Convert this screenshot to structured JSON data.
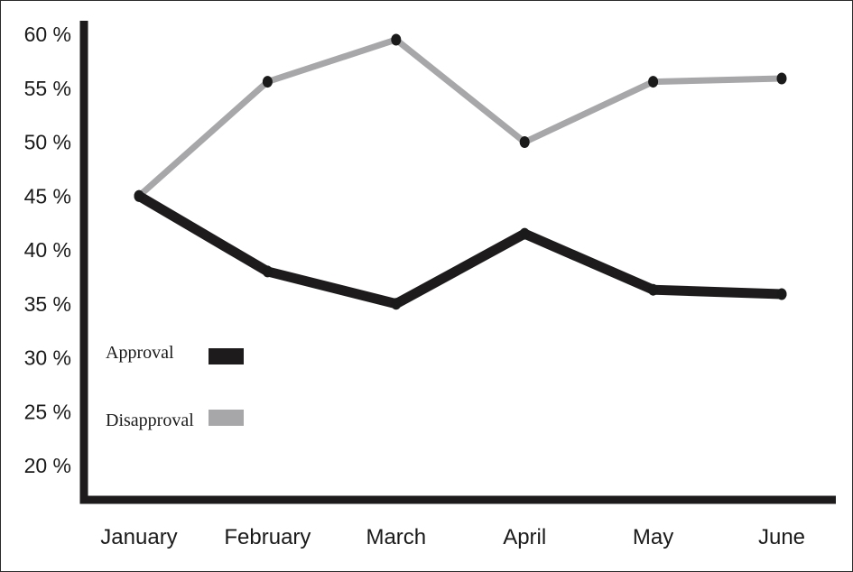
{
  "chart_data": {
    "type": "line",
    "title": "",
    "xlabel": "",
    "ylabel": "",
    "categories": [
      "January",
      "February",
      "March",
      "April",
      "May",
      "June"
    ],
    "y_ticks": [
      "20 %",
      "25 %",
      "30 %",
      "35 %",
      "40 %",
      "45 %",
      "50 %",
      "55 %",
      "60 %"
    ],
    "ylim": [
      20,
      60
    ],
    "grid": false,
    "legend_position": "left",
    "series": [
      {
        "name": "Approval",
        "values": [
          45,
          38,
          35,
          41.5,
          36.3,
          35.9
        ],
        "color": "#1e1b1c"
      },
      {
        "name": "Disapproval",
        "values": [
          45,
          55.6,
          59.5,
          50,
          55.6,
          55.9
        ],
        "color": "#a7a7aa"
      }
    ],
    "marker_color": "#1a1a1a",
    "axis_color": "#1e1b1c"
  }
}
